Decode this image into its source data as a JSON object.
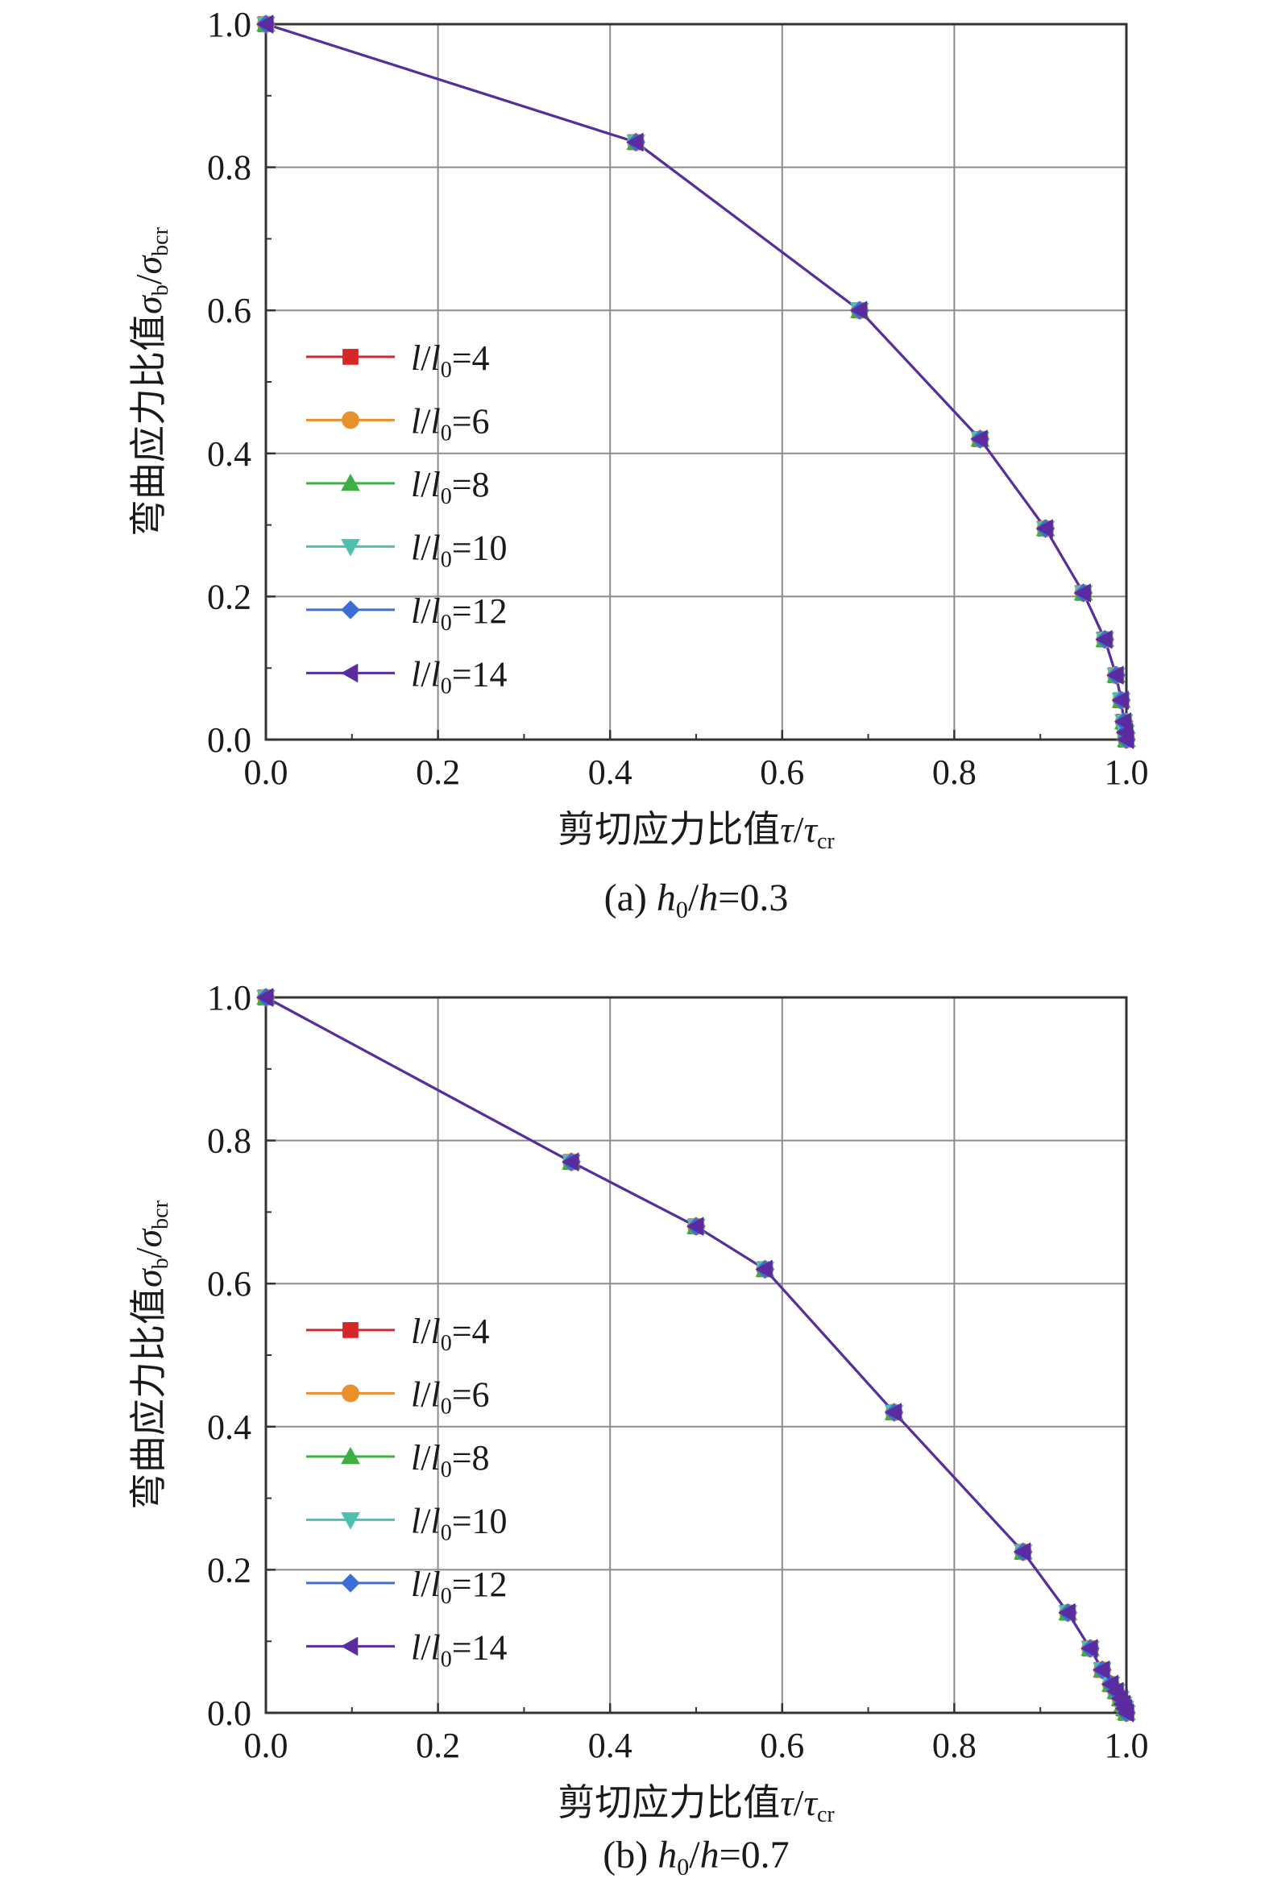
{
  "figure": {
    "panels": [
      {
        "caption": {
          "prefix": "(a) ",
          "h0": "h",
          "h0_sub": "0",
          "slash": "/",
          "h": "h",
          "eq": "=0.3"
        }
      },
      {
        "caption": {
          "prefix": "(b) ",
          "h0": "h",
          "h0_sub": "0",
          "slash": "/",
          "h": "h",
          "eq": "=0.7"
        }
      }
    ],
    "x_axis_label": {
      "cn": "剪切应力比值",
      "sym": "τ",
      "slash": "/",
      "sym2": "τ",
      "sub": "cr"
    },
    "y_axis_label": {
      "cn": "弯曲应力比值",
      "sym": "σ",
      "sub1": "b",
      "slash": "/",
      "sym2": "σ",
      "sub2": "bcr"
    },
    "x_ticks": [
      "0.0",
      "0.2",
      "0.4",
      "0.6",
      "0.8",
      "1.0"
    ],
    "y_ticks": [
      "0.0",
      "0.2",
      "0.4",
      "0.6",
      "0.8",
      "1.0"
    ],
    "legend": [
      {
        "l": "l",
        "slash": "/",
        "l0": "l",
        "sub": "0",
        "eq": "=4"
      },
      {
        "l": "l",
        "slash": "/",
        "l0": "l",
        "sub": "0",
        "eq": "=6"
      },
      {
        "l": "l",
        "slash": "/",
        "l0": "l",
        "sub": "0",
        "eq": "=8"
      },
      {
        "l": "l",
        "slash": "/",
        "l0": "l",
        "sub": "0",
        "eq": "=10"
      },
      {
        "l": "l",
        "slash": "/",
        "l0": "l",
        "sub": "0",
        "eq": "=12"
      },
      {
        "l": "l",
        "slash": "/",
        "l0": "l",
        "sub": "0",
        "eq": "=14"
      }
    ]
  },
  "chart_data": [
    {
      "type": "line",
      "xlim": [
        0,
        1
      ],
      "ylim": [
        0,
        1
      ],
      "grid": true,
      "legend_position": "left-middle",
      "series": [
        {
          "name": "l/l0=4",
          "color": "#d62728",
          "marker": "square",
          "x": [
            0.0,
            0.43,
            0.69,
            0.83,
            0.906,
            0.95,
            0.975,
            0.988,
            0.994,
            0.997,
            0.999,
            1.0
          ],
          "y": [
            1.0,
            0.835,
            0.6,
            0.42,
            0.295,
            0.205,
            0.14,
            0.09,
            0.055,
            0.025,
            0.01,
            0.0
          ]
        },
        {
          "name": "l/l0=6",
          "color": "#e8912c",
          "marker": "circle",
          "x": [
            0.0,
            0.43,
            0.69,
            0.83,
            0.906,
            0.95,
            0.975,
            0.988,
            0.994,
            0.997,
            0.999,
            1.0
          ],
          "y": [
            1.0,
            0.835,
            0.6,
            0.42,
            0.295,
            0.205,
            0.14,
            0.09,
            0.055,
            0.025,
            0.01,
            0.0
          ]
        },
        {
          "name": "l/l0=8",
          "color": "#3cb043",
          "marker": "triangle-up",
          "x": [
            0.0,
            0.43,
            0.69,
            0.83,
            0.906,
            0.95,
            0.975,
            0.988,
            0.994,
            0.997,
            0.999,
            1.0
          ],
          "y": [
            1.0,
            0.835,
            0.6,
            0.42,
            0.295,
            0.205,
            0.14,
            0.09,
            0.055,
            0.025,
            0.01,
            0.0
          ]
        },
        {
          "name": "l/l0=10",
          "color": "#4fc0b0",
          "marker": "triangle-down",
          "x": [
            0.0,
            0.43,
            0.69,
            0.83,
            0.906,
            0.95,
            0.975,
            0.988,
            0.994,
            0.997,
            0.999,
            1.0
          ],
          "y": [
            1.0,
            0.835,
            0.6,
            0.42,
            0.295,
            0.205,
            0.14,
            0.09,
            0.055,
            0.025,
            0.01,
            0.0
          ]
        },
        {
          "name": "l/l0=12",
          "color": "#3c6fd6",
          "marker": "diamond",
          "x": [
            0.0,
            0.43,
            0.69,
            0.83,
            0.906,
            0.95,
            0.975,
            0.988,
            0.994,
            0.997,
            0.999,
            1.0
          ],
          "y": [
            1.0,
            0.835,
            0.6,
            0.42,
            0.295,
            0.205,
            0.14,
            0.09,
            0.055,
            0.025,
            0.01,
            0.0
          ]
        },
        {
          "name": "l/l0=14",
          "color": "#5b2ca0",
          "marker": "triangle-left",
          "x": [
            0.0,
            0.43,
            0.69,
            0.83,
            0.906,
            0.95,
            0.975,
            0.988,
            0.994,
            0.997,
            0.999,
            1.0
          ],
          "y": [
            1.0,
            0.835,
            0.6,
            0.42,
            0.295,
            0.205,
            0.14,
            0.09,
            0.055,
            0.025,
            0.01,
            0.0
          ]
        }
      ]
    },
    {
      "type": "line",
      "xlim": [
        0,
        1
      ],
      "ylim": [
        0,
        1
      ],
      "grid": true,
      "legend_position": "left-middle",
      "series": [
        {
          "name": "l/l0=4",
          "color": "#d62728",
          "marker": "square",
          "x": [
            0.0,
            0.355,
            0.5,
            0.58,
            0.73,
            0.88,
            0.932,
            0.958,
            0.972,
            0.982,
            0.988,
            0.993,
            0.996,
            0.998,
            1.0
          ],
          "y": [
            1.0,
            0.77,
            0.68,
            0.62,
            0.42,
            0.225,
            0.14,
            0.09,
            0.06,
            0.04,
            0.03,
            0.02,
            0.012,
            0.006,
            0.0
          ]
        },
        {
          "name": "l/l0=6",
          "color": "#e8912c",
          "marker": "circle",
          "x": [
            0.0,
            0.355,
            0.5,
            0.58,
            0.73,
            0.88,
            0.932,
            0.958,
            0.972,
            0.982,
            0.988,
            0.993,
            0.996,
            0.998,
            1.0
          ],
          "y": [
            1.0,
            0.77,
            0.68,
            0.62,
            0.42,
            0.225,
            0.14,
            0.09,
            0.06,
            0.04,
            0.03,
            0.02,
            0.012,
            0.006,
            0.0
          ]
        },
        {
          "name": "l/l0=8",
          "color": "#3cb043",
          "marker": "triangle-up",
          "x": [
            0.0,
            0.355,
            0.5,
            0.58,
            0.73,
            0.88,
            0.932,
            0.958,
            0.972,
            0.982,
            0.988,
            0.993,
            0.996,
            0.998,
            1.0
          ],
          "y": [
            1.0,
            0.77,
            0.68,
            0.62,
            0.42,
            0.225,
            0.14,
            0.09,
            0.06,
            0.04,
            0.03,
            0.02,
            0.012,
            0.006,
            0.0
          ]
        },
        {
          "name": "l/l0=10",
          "color": "#4fc0b0",
          "marker": "triangle-down",
          "x": [
            0.0,
            0.355,
            0.5,
            0.58,
            0.73,
            0.88,
            0.932,
            0.958,
            0.972,
            0.982,
            0.988,
            0.993,
            0.996,
            0.998,
            1.0
          ],
          "y": [
            1.0,
            0.77,
            0.68,
            0.62,
            0.42,
            0.225,
            0.14,
            0.09,
            0.06,
            0.04,
            0.03,
            0.02,
            0.012,
            0.006,
            0.0
          ]
        },
        {
          "name": "l/l0=12",
          "color": "#3c6fd6",
          "marker": "diamond",
          "x": [
            0.0,
            0.355,
            0.5,
            0.58,
            0.73,
            0.88,
            0.932,
            0.958,
            0.972,
            0.982,
            0.988,
            0.993,
            0.996,
            0.998,
            1.0
          ],
          "y": [
            1.0,
            0.77,
            0.68,
            0.62,
            0.42,
            0.225,
            0.14,
            0.09,
            0.06,
            0.04,
            0.03,
            0.02,
            0.012,
            0.006,
            0.0
          ]
        },
        {
          "name": "l/l0=14",
          "color": "#5b2ca0",
          "marker": "triangle-left",
          "x": [
            0.0,
            0.355,
            0.5,
            0.58,
            0.73,
            0.88,
            0.932,
            0.958,
            0.972,
            0.982,
            0.988,
            0.993,
            0.996,
            0.998,
            1.0
          ],
          "y": [
            1.0,
            0.77,
            0.68,
            0.62,
            0.42,
            0.225,
            0.14,
            0.09,
            0.06,
            0.04,
            0.03,
            0.02,
            0.012,
            0.006,
            0.0
          ]
        }
      ]
    }
  ]
}
